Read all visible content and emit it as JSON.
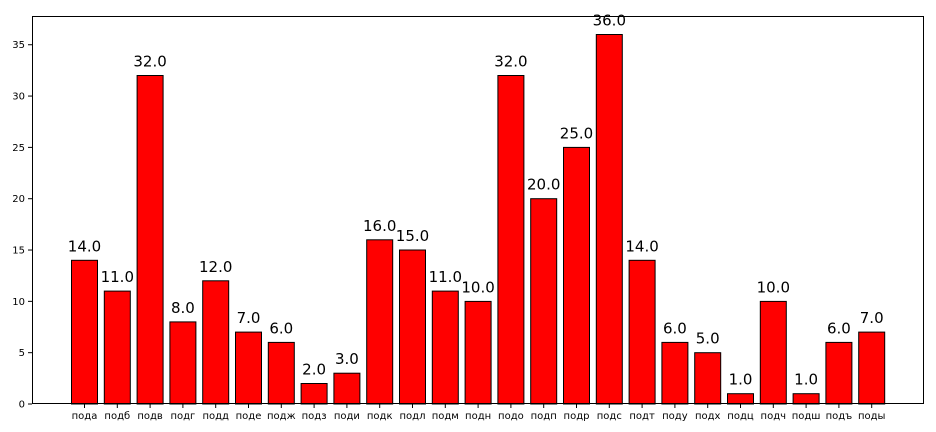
{
  "chart_data": {
    "type": "bar",
    "title": "",
    "xlabel": "",
    "ylabel": "",
    "categories": [
      "пода",
      "подб",
      "подв",
      "подг",
      "подд",
      "поде",
      "подж",
      "подз",
      "поди",
      "подк",
      "подл",
      "подм",
      "подн",
      "подо",
      "подп",
      "подр",
      "подс",
      "подт",
      "поду",
      "подх",
      "подц",
      "подч",
      "подш",
      "подъ",
      "поды"
    ],
    "values": [
      14,
      11,
      32,
      8,
      12,
      7,
      6,
      2,
      3,
      16,
      15,
      11,
      10,
      32,
      20,
      25,
      36,
      14,
      6,
      5,
      1,
      10,
      1,
      6,
      7
    ],
    "value_labels": [
      "14.0",
      "11.0",
      "32.0",
      "8.0",
      "12.0",
      "7.0",
      "6.0",
      "2.0",
      "3.0",
      "16.0",
      "15.0",
      "11.0",
      "10.0",
      "32.0",
      "20.0",
      "25.0",
      "36.0",
      "14.0",
      "6.0",
      "5.0",
      "1.0",
      "10.0",
      "1.0",
      "6.0",
      "7.0"
    ],
    "ylim": [
      0,
      37.8
    ],
    "yticks": [
      0,
      5,
      10,
      15,
      20,
      25,
      30,
      35
    ],
    "ytick_labels": [
      "0",
      "5",
      "10",
      "15",
      "20",
      "25",
      "30",
      "35"
    ],
    "bar_color": "#ff0000",
    "bar_edge_color": "#000000",
    "grid": false,
    "legend": "none"
  }
}
